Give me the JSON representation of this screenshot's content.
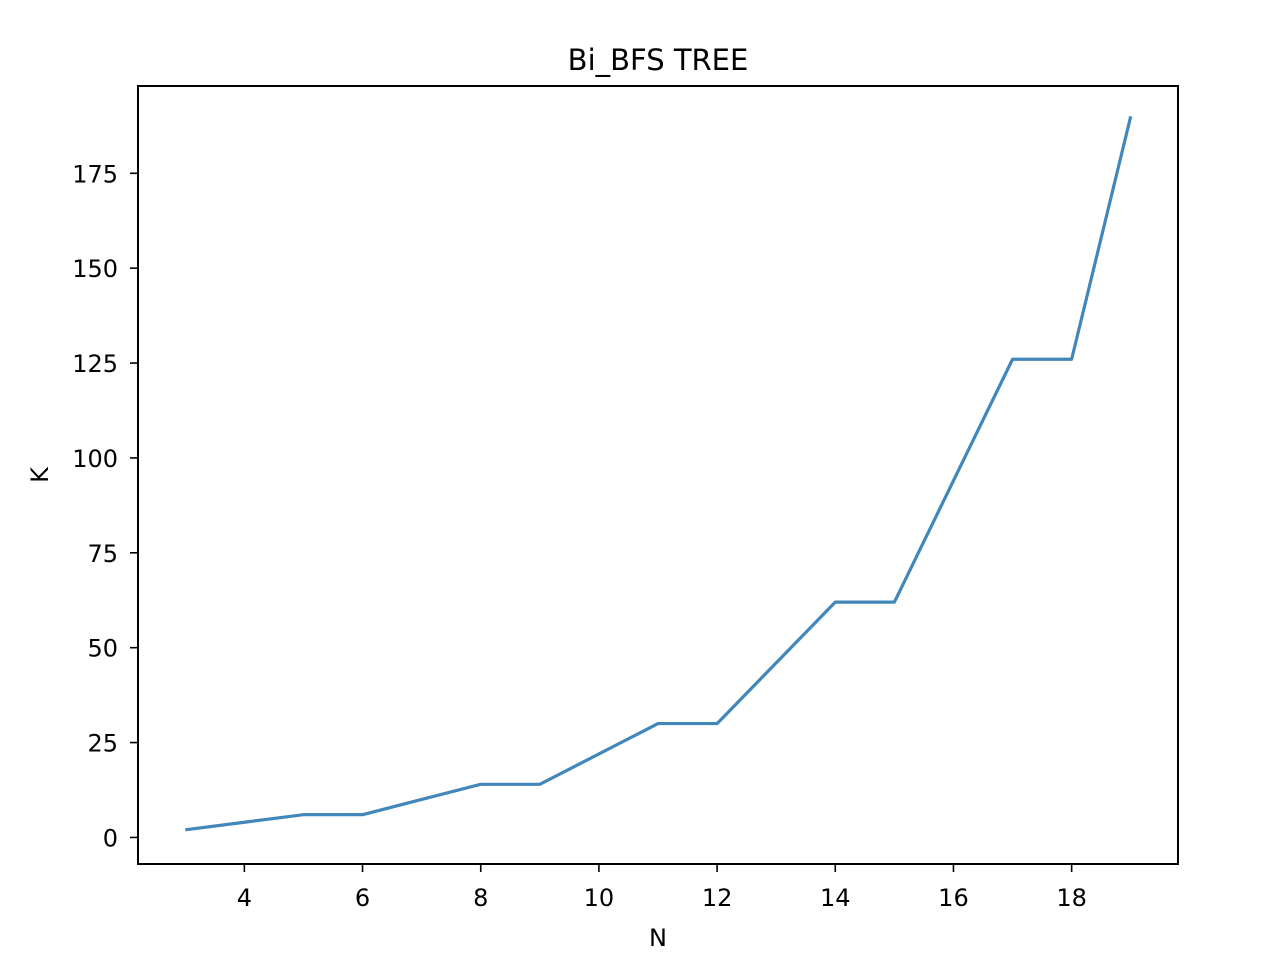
{
  "chart_data": {
    "type": "line",
    "title": "Bi_BFS TREE",
    "xlabel": "N",
    "ylabel": "K",
    "xlim": [
      2.2,
      19.8
    ],
    "ylim": [
      -7,
      198
    ],
    "xticks": [
      4,
      6,
      8,
      10,
      12,
      14,
      16,
      18
    ],
    "yticks": [
      0,
      25,
      50,
      75,
      100,
      125,
      150,
      175
    ],
    "grid": false,
    "legend": "none",
    "series": [
      {
        "color": "#4287bb",
        "x": [
          3,
          4,
          5,
          6,
          7,
          8,
          9,
          10,
          11,
          12,
          13,
          14,
          15,
          16,
          17,
          18,
          19
        ],
        "y": [
          2,
          4,
          6,
          6,
          10,
          14,
          14,
          22,
          30,
          30,
          46,
          62,
          62,
          94,
          126,
          126,
          190
        ]
      }
    ]
  }
}
